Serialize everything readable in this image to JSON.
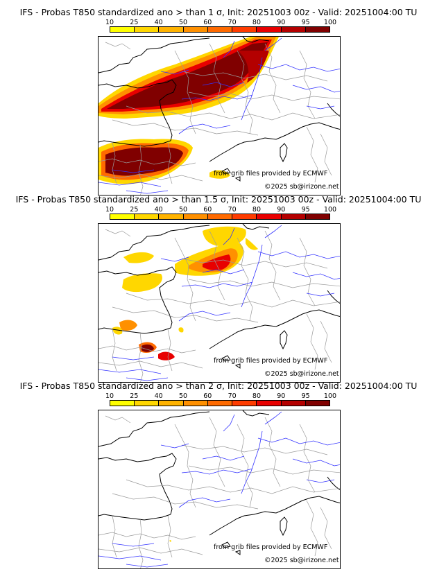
{
  "colorbar": {
    "ticks": [
      "10",
      "25",
      "40",
      "50",
      "60",
      "70",
      "80",
      "90",
      "95",
      "100"
    ],
    "colors": [
      "#ffff00",
      "#ffd700",
      "#ffb300",
      "#ff9000",
      "#ff6a00",
      "#ff3c00",
      "#e80000",
      "#b40000",
      "#800000"
    ]
  },
  "panels": [
    {
      "title": "IFS - Probas T850  standardized ano > than 1 σ, Init: 20251003 00z - Valid: 20251004:00 TU",
      "source": "from grib files provided by ECMWF",
      "copyright": "©2025 sb@irizone.net"
    },
    {
      "title": "IFS - Probas T850  standardized ano > than 1.5 σ, Init: 20251003 00z - Valid: 20251004:00 TU",
      "source": "from grib files provided by ECMWF",
      "copyright": "©2025 sb@irizone.net"
    },
    {
      "title": "IFS - Probas T850  standardized ano > than 2 σ, Init: 20251003 00z - Valid: 20251004:00 TU",
      "source": "from grib files provided by ECMWF",
      "copyright": "©2025 sb@irizone.net"
    }
  ]
}
